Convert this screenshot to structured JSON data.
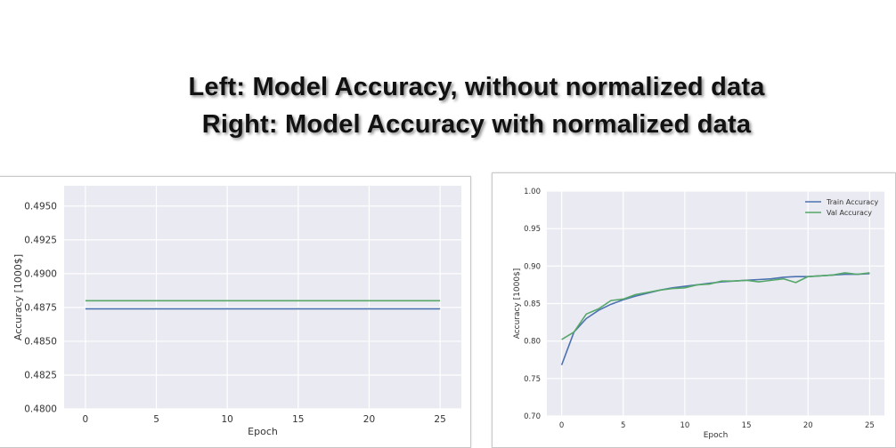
{
  "headline": {
    "line1": "Left: Model Accuracy, without normalized data",
    "line2": "Right: Model Accuracy with normalized data"
  },
  "colors": {
    "background": "#eaeaf2",
    "grid": "#ffffff",
    "train": "#4c72b0",
    "val": "#55a868"
  },
  "chart_data": [
    {
      "type": "line",
      "xlabel": "Epoch",
      "ylabel": "Accuracy [1000$]",
      "xlim": [
        -1.5,
        26.5
      ],
      "ylim": [
        0.48,
        0.4965
      ],
      "xticks": [
        "0",
        "5",
        "10",
        "15",
        "20",
        "25"
      ],
      "xtick_values": [
        0,
        5,
        10,
        15,
        20,
        25
      ],
      "yticks": [
        "0.4800",
        "0.4825",
        "0.4850",
        "0.4875",
        "0.4900",
        "0.4925",
        "0.4950"
      ],
      "ytick_values": [
        0.48,
        0.4825,
        0.485,
        0.4875,
        0.49,
        0.4925,
        0.495
      ],
      "grid": true,
      "series": [
        {
          "color": "#4c72b0",
          "x": [
            0,
            1,
            2,
            3,
            4,
            5,
            6,
            7,
            8,
            9,
            10,
            11,
            12,
            13,
            14,
            15,
            16,
            17,
            18,
            19,
            20,
            21,
            22,
            23,
            24,
            25
          ],
          "y": [
            0.4874,
            0.4874,
            0.4874,
            0.4874,
            0.4874,
            0.4874,
            0.4874,
            0.4874,
            0.4874,
            0.4874,
            0.4874,
            0.4874,
            0.4874,
            0.4874,
            0.4874,
            0.4874,
            0.4874,
            0.4874,
            0.4874,
            0.4874,
            0.4874,
            0.4874,
            0.4874,
            0.4874,
            0.4874,
            0.4874
          ]
        },
        {
          "color": "#55a868",
          "x": [
            0,
            1,
            2,
            3,
            4,
            5,
            6,
            7,
            8,
            9,
            10,
            11,
            12,
            13,
            14,
            15,
            16,
            17,
            18,
            19,
            20,
            21,
            22,
            23,
            24,
            25
          ],
          "y": [
            0.488,
            0.488,
            0.488,
            0.488,
            0.488,
            0.488,
            0.488,
            0.488,
            0.488,
            0.488,
            0.488,
            0.488,
            0.488,
            0.488,
            0.488,
            0.488,
            0.488,
            0.488,
            0.488,
            0.488,
            0.488,
            0.488,
            0.488,
            0.488,
            0.488,
            0.488
          ]
        }
      ]
    },
    {
      "type": "line",
      "xlabel": "Epoch",
      "ylabel": "Accuracy [1000$]",
      "xlim": [
        -1.2,
        26.2
      ],
      "ylim": [
        0.7,
        1.0
      ],
      "xticks": [
        "0",
        "5",
        "10",
        "15",
        "20",
        "25"
      ],
      "xtick_values": [
        0,
        5,
        10,
        15,
        20,
        25
      ],
      "yticks": [
        "0.70",
        "0.75",
        "0.80",
        "0.85",
        "0.90",
        "0.95",
        "1.00"
      ],
      "ytick_values": [
        0.7,
        0.75,
        0.8,
        0.85,
        0.9,
        0.95,
        1.0
      ],
      "grid": true,
      "legend_position": "top-right",
      "series": [
        {
          "name": "Train Accuracy",
          "color": "#4c72b0",
          "x": [
            0,
            1,
            2,
            3,
            4,
            5,
            6,
            7,
            8,
            9,
            10,
            11,
            12,
            13,
            14,
            15,
            16,
            17,
            18,
            19,
            20,
            21,
            22,
            23,
            24,
            25
          ],
          "y": [
            0.768,
            0.812,
            0.83,
            0.841,
            0.849,
            0.855,
            0.86,
            0.864,
            0.868,
            0.871,
            0.873,
            0.875,
            0.877,
            0.879,
            0.88,
            0.881,
            0.882,
            0.883,
            0.885,
            0.886,
            0.886,
            0.887,
            0.888,
            0.889,
            0.889,
            0.89
          ]
        },
        {
          "name": "Val Accuracy",
          "color": "#55a868",
          "x": [
            0,
            1,
            2,
            3,
            4,
            5,
            6,
            7,
            8,
            9,
            10,
            11,
            12,
            13,
            14,
            15,
            16,
            17,
            18,
            19,
            20,
            21,
            22,
            23,
            24,
            25
          ],
          "y": [
            0.802,
            0.812,
            0.836,
            0.843,
            0.854,
            0.856,
            0.862,
            0.865,
            0.868,
            0.87,
            0.871,
            0.875,
            0.876,
            0.88,
            0.88,
            0.881,
            0.879,
            0.881,
            0.883,
            0.878,
            0.886,
            0.887,
            0.888,
            0.891,
            0.889,
            0.891
          ]
        }
      ]
    }
  ]
}
